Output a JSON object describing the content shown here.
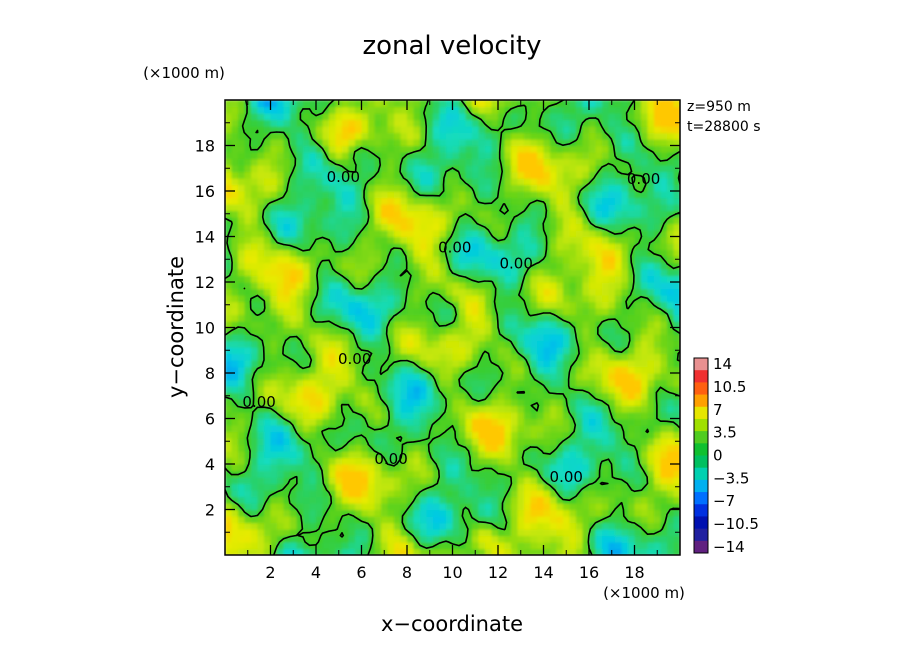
{
  "chart_data": {
    "type": "heatmap",
    "title": "zonal velocity",
    "xlabel": "x−coordinate",
    "ylabel": "y−coordinate",
    "x_unit": "(×1000 m)",
    "y_unit": "(×1000 m)",
    "annotations": [
      "z=950 m",
      "t=28800 s"
    ],
    "xlim": [
      0,
      20
    ],
    "ylim": [
      0,
      20
    ],
    "x_ticks": [
      2,
      4,
      6,
      8,
      10,
      12,
      14,
      16,
      18
    ],
    "y_ticks": [
      2,
      4,
      6,
      8,
      10,
      12,
      14,
      16,
      18
    ],
    "x_tick_labels": [
      "2",
      "4",
      "6",
      "8",
      "10",
      "12",
      "14",
      "16",
      "18"
    ],
    "y_tick_labels": [
      "2",
      "4",
      "6",
      "8",
      "10",
      "12",
      "14",
      "16",
      "18"
    ],
    "contour_labels": [
      {
        "x": 5.2,
        "y": 16.6,
        "text": "0.00"
      },
      {
        "x": 18.4,
        "y": 16.5,
        "text": "0.00"
      },
      {
        "x": 10.1,
        "y": 13.5,
        "text": "0.00"
      },
      {
        "x": 12.8,
        "y": 12.8,
        "text": "0.00"
      },
      {
        "x": 5.7,
        "y": 8.6,
        "text": "0.00"
      },
      {
        "x": 1.5,
        "y": 6.7,
        "text": "0.00"
      },
      {
        "x": 7.3,
        "y": 4.2,
        "text": "0.00"
      },
      {
        "x": 15.0,
        "y": 3.4,
        "text": "0.00"
      }
    ],
    "colorbar": {
      "levels": [
        -14,
        -10.5,
        -7,
        -3.5,
        0,
        3.5,
        7,
        10.5,
        14
      ],
      "labels": [
        "14",
        "10.5",
        "7",
        "3.5",
        "0",
        "−3.5",
        "−7",
        "−10.5",
        "−14"
      ],
      "colors": [
        "#e89090",
        "#f03030",
        "#ff6010",
        "#ffa000",
        "#e6e600",
        "#a0e000",
        "#50cc20",
        "#10c030",
        "#00c060",
        "#00d0b0",
        "#00b0f0",
        "#0070ff",
        "#0030e0",
        "#0010b0",
        "#2020a0",
        "#602080"
      ]
    },
    "field_range": [
      -8,
      6
    ],
    "grid": false
  }
}
